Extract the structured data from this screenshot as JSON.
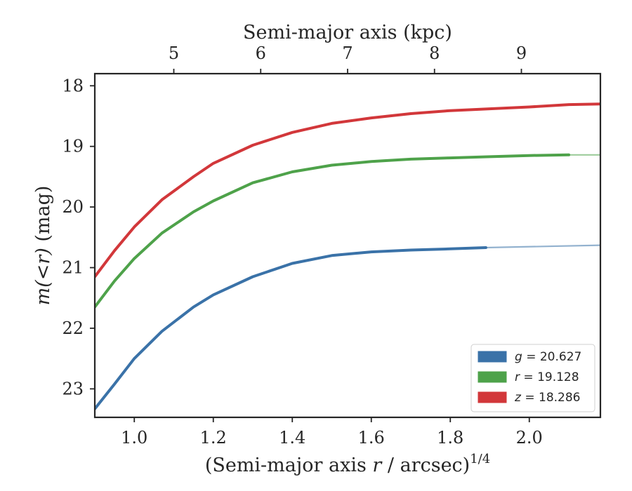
{
  "chart_data": {
    "type": "line",
    "xlabel": "(Semi-major axis r / arcsec)^1/4",
    "xlabel_parts": {
      "prefix": "(Semi-major axis ",
      "var": "r",
      "suffix": " / arcsec)",
      "sup": "1/4"
    },
    "ylabel": "m(< r) (mag)",
    "ylabel_parts": {
      "var": "m(<r)",
      "suffix": " (mag)"
    },
    "top_xlabel": "Semi-major axis (kpc)",
    "xlim": [
      0.9,
      2.18
    ],
    "ylim": [
      23.47,
      17.8
    ],
    "y_inverted": true,
    "xticks": [
      1.0,
      1.2,
      1.4,
      1.6,
      1.8,
      2.0
    ],
    "xtick_labels": [
      "1.0",
      "1.2",
      "1.4",
      "1.6",
      "1.8",
      "2.0"
    ],
    "yticks": [
      18,
      19,
      20,
      21,
      22,
      23
    ],
    "ytick_labels": [
      "18",
      "19",
      "20",
      "21",
      "22",
      "23"
    ],
    "top_ticks_kpc": [
      5,
      6,
      7,
      8,
      9
    ],
    "top_tick_labels": [
      "5",
      "6",
      "7",
      "8",
      "9"
    ],
    "top_ticks_at_x": [
      1.1,
      1.32,
      1.54,
      1.76,
      1.98
    ],
    "legend_position": "lower-right",
    "grid": false,
    "series": [
      {
        "name": "g = 20.627",
        "legend_var": "g",
        "legend_value": "20.627",
        "color": "#3a72a8",
        "x": [
          0.9,
          0.95,
          1.0,
          1.07,
          1.15,
          1.2,
          1.3,
          1.4,
          1.5,
          1.6,
          1.7,
          1.8,
          1.89
        ],
        "y": [
          23.33,
          22.92,
          22.5,
          22.05,
          21.65,
          21.45,
          21.15,
          20.93,
          20.8,
          20.74,
          20.71,
          20.69,
          20.67
        ],
        "x_ext": [
          1.89,
          2.18
        ],
        "y_ext": [
          20.67,
          20.63
        ]
      },
      {
        "name": "r = 19.128",
        "legend_var": "r",
        "legend_value": "19.128",
        "color": "#4ea24a",
        "x": [
          0.9,
          0.95,
          1.0,
          1.07,
          1.15,
          1.2,
          1.3,
          1.4,
          1.5,
          1.6,
          1.7,
          1.8,
          1.9,
          2.0,
          2.1
        ],
        "y": [
          21.65,
          21.22,
          20.85,
          20.43,
          20.08,
          19.9,
          19.6,
          19.42,
          19.31,
          19.25,
          19.21,
          19.19,
          19.17,
          19.15,
          19.14
        ],
        "x_ext": [
          2.1,
          2.18
        ],
        "y_ext": [
          19.14,
          19.14
        ]
      },
      {
        "name": "z = 18.286",
        "legend_var": "z",
        "legend_value": "18.286",
        "color": "#d2373a",
        "x": [
          0.9,
          0.95,
          1.0,
          1.07,
          1.15,
          1.2,
          1.3,
          1.4,
          1.5,
          1.6,
          1.7,
          1.8,
          1.9,
          2.0,
          2.1,
          2.18
        ],
        "y": [
          21.15,
          20.72,
          20.33,
          19.88,
          19.5,
          19.28,
          18.98,
          18.77,
          18.62,
          18.53,
          18.46,
          18.41,
          18.38,
          18.35,
          18.31,
          18.3
        ],
        "x_ext": [],
        "y_ext": []
      }
    ]
  }
}
